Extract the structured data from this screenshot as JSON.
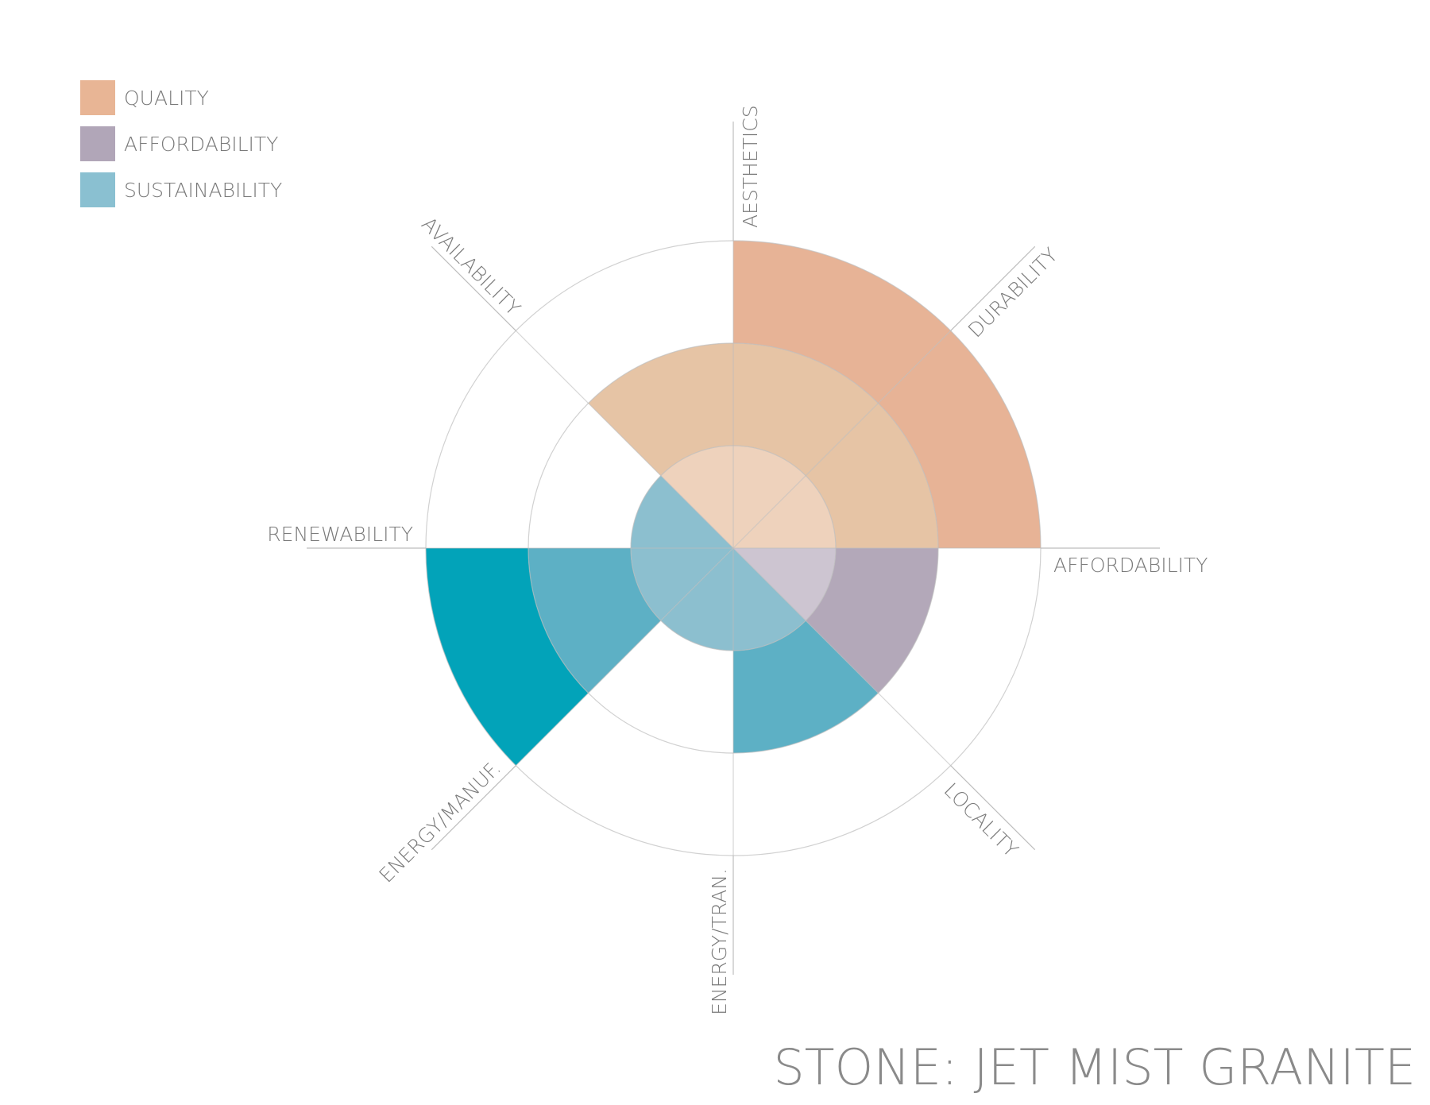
{
  "chart_data": {
    "type": "polar-area",
    "title": "STONE: JET MIST GRANITE",
    "categories": [
      "AESTHETICS",
      "DURABILITY",
      "AFFORDABILITY",
      "LOCALITY",
      "ENERGY/TRAN.",
      "ENERGY/MANUF.",
      "RENEWABILITY",
      "AVAILABILITY"
    ],
    "series": [
      {
        "name": "QUALITY",
        "color": "#e8b595",
        "ring_colors": [
          "#eed2bc",
          "#e6c4a5",
          "#e7b396"
        ],
        "values": [
          3,
          3,
          null,
          null,
          null,
          null,
          null,
          2
        ]
      },
      {
        "name": "AFFORDABILITY",
        "color": "#b1a6b8",
        "ring_colors": [
          "#cdc5d1",
          "#b3a8b9",
          "#9e92a6"
        ],
        "values": [
          null,
          null,
          2,
          null,
          null,
          null,
          null,
          null
        ]
      },
      {
        "name": "SUSTAINABILITY",
        "color": "#8ac0d1",
        "ring_colors": [
          "#8cbfcf",
          "#5db0c5",
          "#02a3b9"
        ],
        "values": [
          null,
          null,
          null,
          2,
          1,
          3,
          1,
          null
        ]
      }
    ],
    "rlim": [
      0,
      3
    ],
    "rticks": [
      1,
      2,
      3
    ],
    "grid": true,
    "legend": "top-left"
  }
}
